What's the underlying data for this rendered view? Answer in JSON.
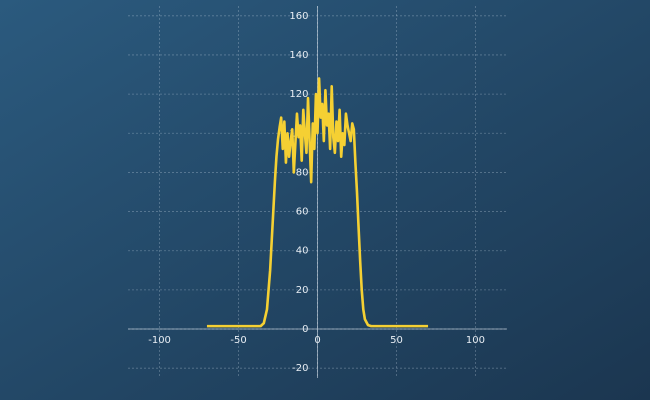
{
  "chart_data": {
    "type": "line",
    "x": [
      -70,
      -60,
      -50,
      -40,
      -36,
      -34,
      -32,
      -30,
      -28,
      -27,
      -26,
      -25,
      -24,
      -23,
      -22,
      -21,
      -20,
      -19,
      -18,
      -17,
      -16,
      -15,
      -14,
      -13,
      -12,
      -11,
      -10,
      -9,
      -8,
      -7,
      -6,
      -5,
      -4,
      -3,
      -2,
      -1,
      0,
      1,
      2,
      3,
      4,
      5,
      6,
      7,
      8,
      9,
      10,
      11,
      12,
      13,
      14,
      15,
      16,
      17,
      18,
      19,
      20,
      21,
      22,
      23,
      24,
      25,
      26,
      27,
      28,
      29,
      30,
      32,
      34,
      36,
      40,
      50,
      60,
      70
    ],
    "series": [
      {
        "color": "#f5d033",
        "values": [
          1.5,
          1.5,
          1.5,
          1.5,
          1.5,
          3,
          10,
          30,
          60,
          75,
          88,
          97,
          103,
          108,
          92,
          106,
          85,
          100,
          88,
          96,
          102,
          80,
          95,
          110,
          98,
          104,
          86,
          112,
          100,
          90,
          118,
          96,
          75,
          105,
          92,
          120,
          100,
          128,
          108,
          115,
          96,
          122,
          104,
          110,
          92,
          124,
          98,
          90,
          106,
          96,
          112,
          88,
          100,
          94,
          110,
          104,
          100,
          96,
          105,
          102,
          85,
          70,
          52,
          35,
          20,
          10,
          5,
          2,
          1.5,
          1.5,
          1.5,
          1.5,
          1.5,
          1.5
        ]
      }
    ],
    "xlim": [
      -120,
      120
    ],
    "ylim": [
      -25,
      165
    ],
    "xticks": [
      -100,
      -50,
      0,
      50,
      100
    ],
    "yticks": [
      -20,
      0,
      20,
      40,
      60,
      80,
      100,
      120,
      140,
      160
    ],
    "grid": true
  }
}
